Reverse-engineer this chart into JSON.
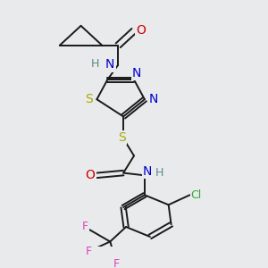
{
  "bg_color": "#e8eaec",
  "bond_color": "#1a1a1a",
  "colors": {
    "C": "#1a1a1a",
    "N": "#0000cc",
    "O": "#cc0000",
    "S": "#aaaa00",
    "H": "#5a8a8a",
    "Cl": "#33aa33",
    "F": "#dd44bb"
  },
  "xlim": [
    0,
    1
  ],
  "ylim": [
    0,
    1
  ]
}
